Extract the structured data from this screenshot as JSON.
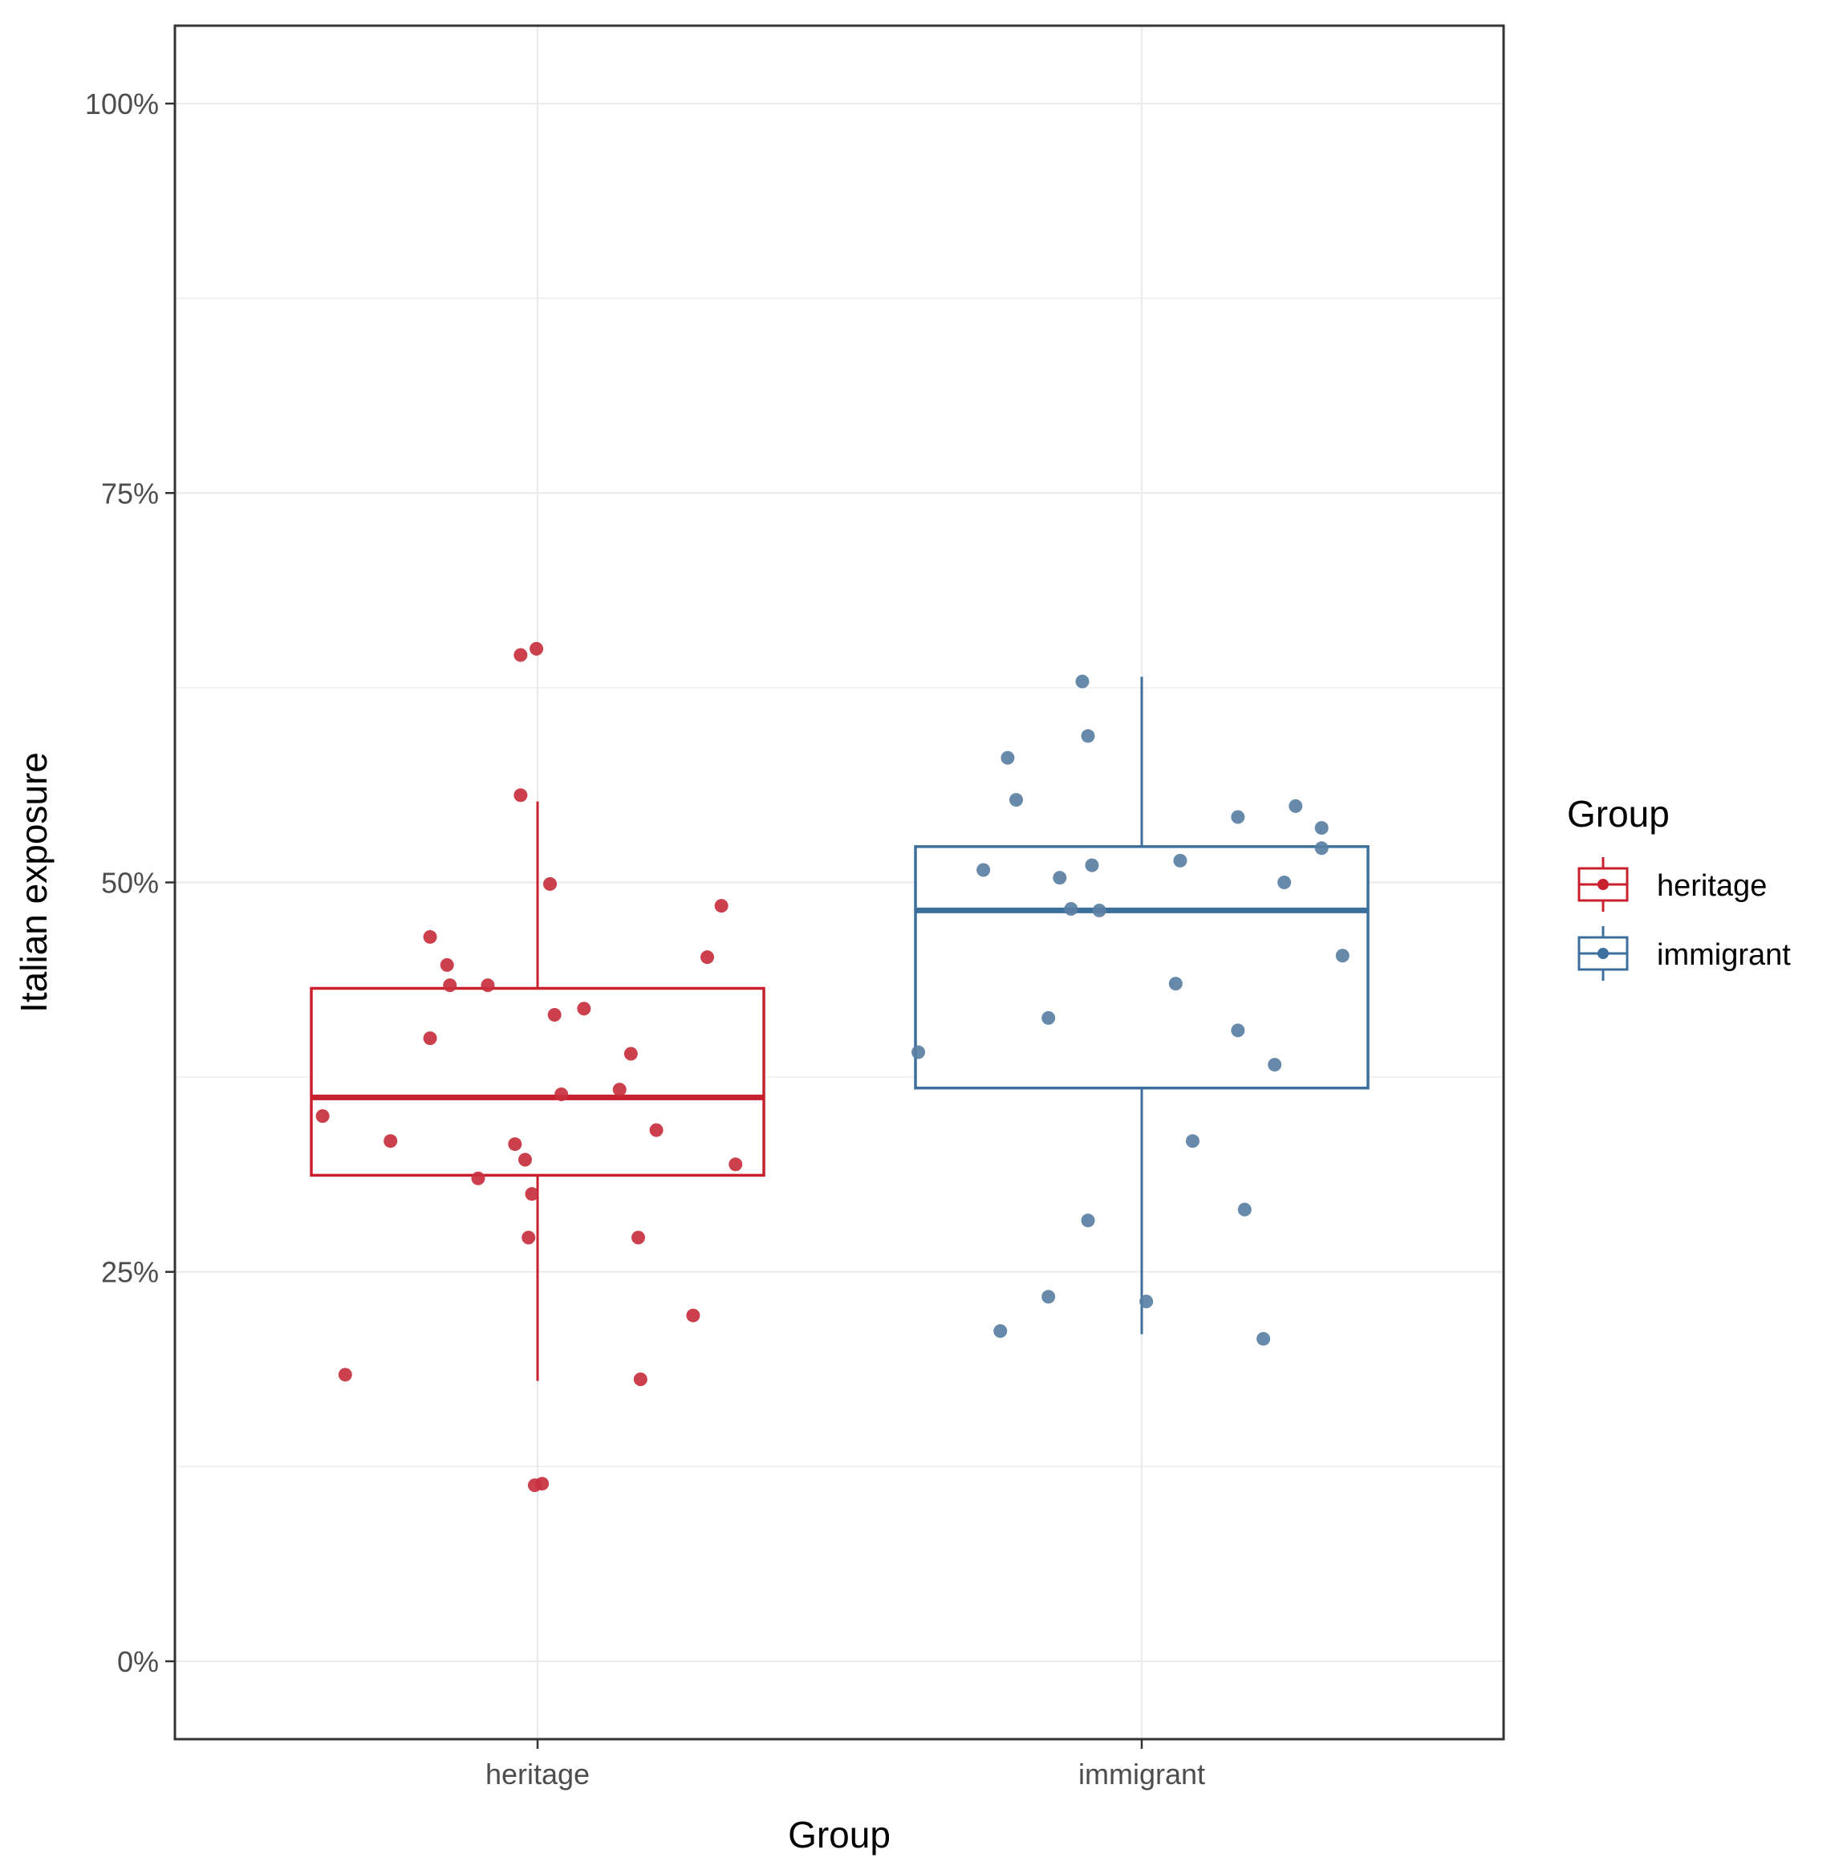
{
  "chart_data": {
    "type": "boxplot",
    "xlabel": "Group",
    "ylabel": "Italian exposure",
    "ylim": [
      -0.05,
      1.05
    ],
    "yticks": [
      0,
      0.25,
      0.5,
      0.75,
      1.0
    ],
    "ytick_labels": [
      "0%",
      "25%",
      "50%",
      "75%",
      "100%"
    ],
    "categories": [
      "heritage",
      "immigrant"
    ],
    "grid": true,
    "legend": {
      "title": "Group",
      "placement": "right",
      "entries": [
        "heritage",
        "immigrant"
      ]
    },
    "colors": {
      "heritage": "#c8202e",
      "immigrant": "#3c6f9c",
      "heritage_points": "#c8303e",
      "immigrant_points": "#5a7fa3",
      "grid": "#ebebeb",
      "frame": "#333333"
    },
    "boxes": [
      {
        "group": "heritage",
        "whisker_low": 0.18,
        "q1": 0.312,
        "median": 0.362,
        "q3": 0.432,
        "whisker_high": 0.552
      },
      {
        "group": "immigrant",
        "whisker_low": 0.21,
        "q1": 0.368,
        "median": 0.482,
        "q3": 0.523,
        "whisker_high": 0.632
      }
    ],
    "points": [
      {
        "group": "heritage",
        "x": -0.38,
        "y": 0.35
      },
      {
        "group": "heritage",
        "x": -0.34,
        "y": 0.184
      },
      {
        "group": "heritage",
        "x": -0.26,
        "y": 0.334
      },
      {
        "group": "heritage",
        "x": -0.19,
        "y": 0.465
      },
      {
        "group": "heritage",
        "x": -0.19,
        "y": 0.4
      },
      {
        "group": "heritage",
        "x": -0.16,
        "y": 0.447
      },
      {
        "group": "heritage",
        "x": -0.155,
        "y": 0.434
      },
      {
        "group": "heritage",
        "x": -0.105,
        "y": 0.31
      },
      {
        "group": "heritage",
        "x": -0.088,
        "y": 0.434
      },
      {
        "group": "heritage",
        "x": -0.04,
        "y": 0.332
      },
      {
        "group": "heritage",
        "x": -0.03,
        "y": 0.646
      },
      {
        "group": "heritage",
        "x": -0.03,
        "y": 0.556
      },
      {
        "group": "heritage",
        "x": -0.022,
        "y": 0.322
      },
      {
        "group": "heritage",
        "x": -0.016,
        "y": 0.272
      },
      {
        "group": "heritage",
        "x": -0.01,
        "y": 0.3
      },
      {
        "group": "heritage",
        "x": -0.005,
        "y": 0.113
      },
      {
        "group": "heritage",
        "x": -0.002,
        "y": 0.65
      },
      {
        "group": "heritage",
        "x": 0.008,
        "y": 0.114
      },
      {
        "group": "heritage",
        "x": 0.022,
        "y": 0.499
      },
      {
        "group": "heritage",
        "x": 0.03,
        "y": 0.415
      },
      {
        "group": "heritage",
        "x": 0.042,
        "y": 0.364
      },
      {
        "group": "heritage",
        "x": 0.082,
        "y": 0.419
      },
      {
        "group": "heritage",
        "x": 0.145,
        "y": 0.367
      },
      {
        "group": "heritage",
        "x": 0.165,
        "y": 0.39
      },
      {
        "group": "heritage",
        "x": 0.178,
        "y": 0.272
      },
      {
        "group": "heritage",
        "x": 0.182,
        "y": 0.181
      },
      {
        "group": "heritage",
        "x": 0.21,
        "y": 0.341
      },
      {
        "group": "heritage",
        "x": 0.275,
        "y": 0.222
      },
      {
        "group": "heritage",
        "x": 0.3,
        "y": 0.452
      },
      {
        "group": "heritage",
        "x": 0.325,
        "y": 0.485
      },
      {
        "group": "heritage",
        "x": 0.35,
        "y": 0.319
      },
      {
        "group": "immigrant",
        "x": -0.395,
        "y": 0.391
      },
      {
        "group": "immigrant",
        "x": -0.28,
        "y": 0.508
      },
      {
        "group": "immigrant",
        "x": -0.25,
        "y": 0.212
      },
      {
        "group": "immigrant",
        "x": -0.237,
        "y": 0.58
      },
      {
        "group": "immigrant",
        "x": -0.222,
        "y": 0.553
      },
      {
        "group": "immigrant",
        "x": -0.165,
        "y": 0.234
      },
      {
        "group": "immigrant",
        "x": -0.165,
        "y": 0.413
      },
      {
        "group": "immigrant",
        "x": -0.145,
        "y": 0.503
      },
      {
        "group": "immigrant",
        "x": -0.125,
        "y": 0.483
      },
      {
        "group": "immigrant",
        "x": -0.105,
        "y": 0.629
      },
      {
        "group": "immigrant",
        "x": -0.095,
        "y": 0.283
      },
      {
        "group": "immigrant",
        "x": -0.095,
        "y": 0.594
      },
      {
        "group": "immigrant",
        "x": -0.088,
        "y": 0.511
      },
      {
        "group": "immigrant",
        "x": -0.075,
        "y": 0.482
      },
      {
        "group": "immigrant",
        "x": 0.008,
        "y": 0.231
      },
      {
        "group": "immigrant",
        "x": 0.06,
        "y": 0.435
      },
      {
        "group": "immigrant",
        "x": 0.068,
        "y": 0.514
      },
      {
        "group": "immigrant",
        "x": 0.09,
        "y": 0.334
      },
      {
        "group": "immigrant",
        "x": 0.17,
        "y": 0.542
      },
      {
        "group": "immigrant",
        "x": 0.17,
        "y": 0.405
      },
      {
        "group": "immigrant",
        "x": 0.182,
        "y": 0.29
      },
      {
        "group": "immigrant",
        "x": 0.215,
        "y": 0.207
      },
      {
        "group": "immigrant",
        "x": 0.235,
        "y": 0.383
      },
      {
        "group": "immigrant",
        "x": 0.252,
        "y": 0.5
      },
      {
        "group": "immigrant",
        "x": 0.272,
        "y": 0.549
      },
      {
        "group": "immigrant",
        "x": 0.318,
        "y": 0.535
      },
      {
        "group": "immigrant",
        "x": 0.318,
        "y": 0.522
      },
      {
        "group": "immigrant",
        "x": 0.355,
        "y": 0.453
      }
    ]
  }
}
